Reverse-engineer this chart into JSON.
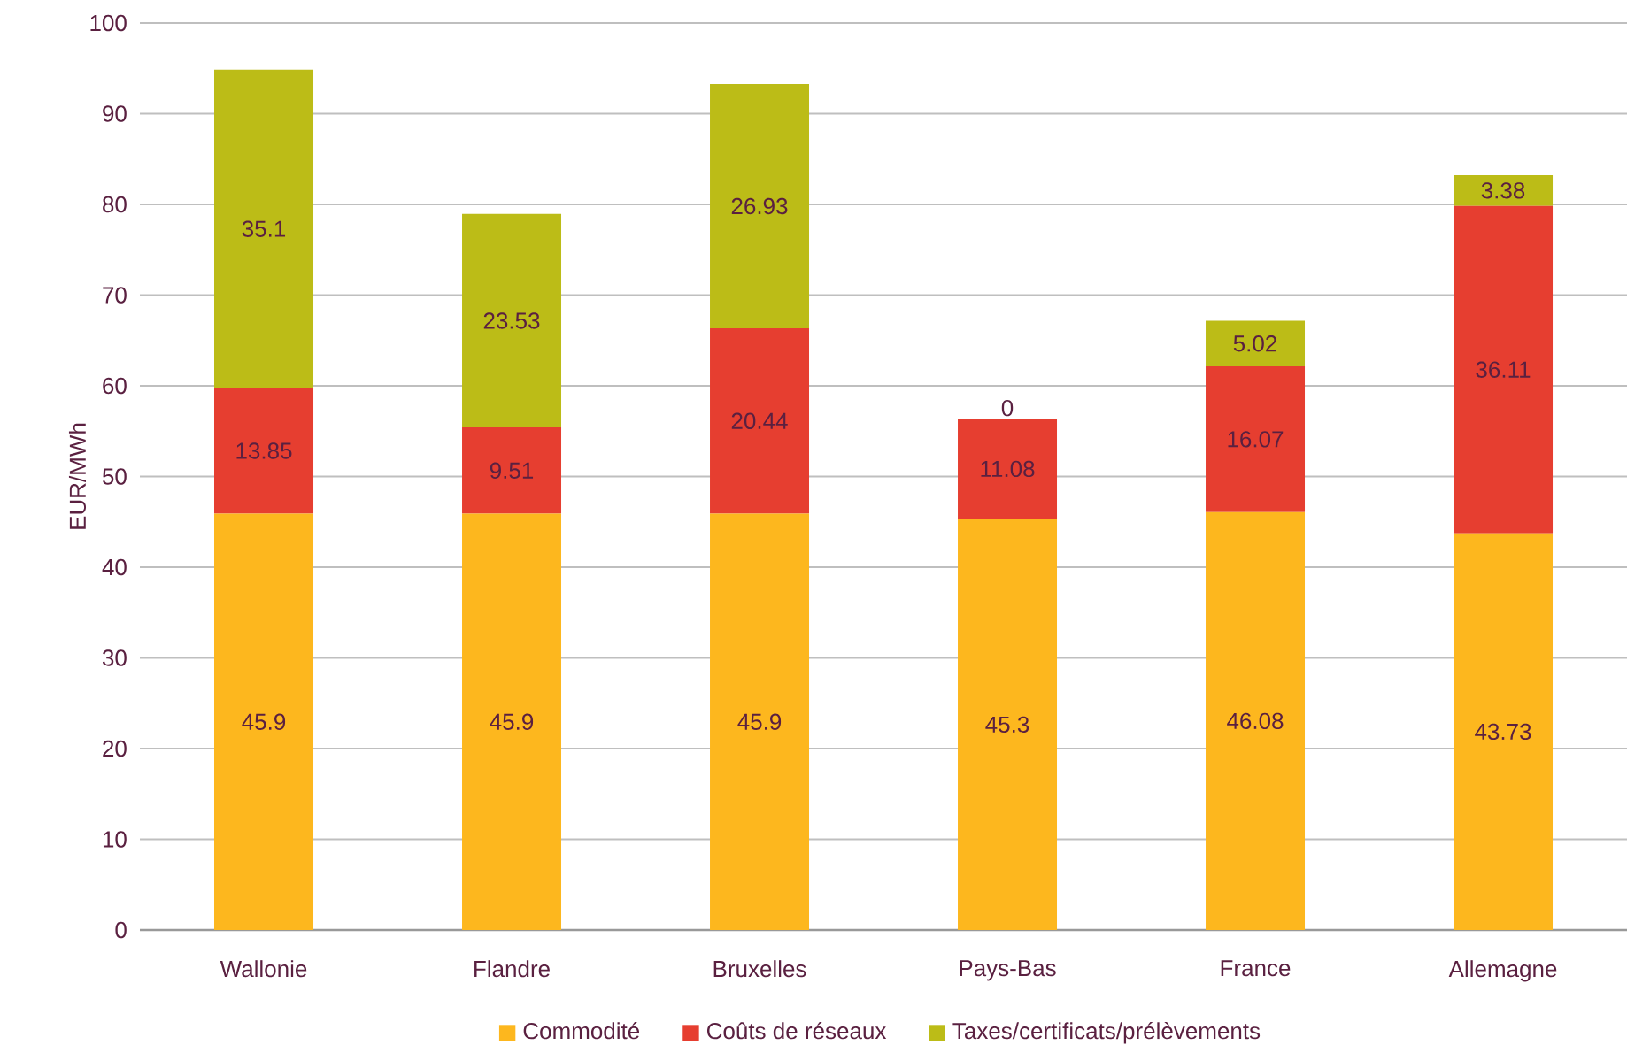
{
  "chart_data": {
    "type": "bar",
    "stacked": true,
    "ylabel": "EUR/MWh",
    "categories": [
      "Wallonie",
      "Flandre",
      "Bruxelles",
      "Pays-Bas",
      "France",
      "Allemagne"
    ],
    "series": [
      {
        "name": "Commodité",
        "color": "#fdb71e",
        "values": [
          45.9,
          45.9,
          45.9,
          45.3,
          46.08,
          43.73
        ]
      },
      {
        "name": "Coûts de réseaux",
        "color": "#e63e30",
        "values": [
          13.85,
          9.51,
          20.44,
          11.08,
          16.07,
          36.11
        ]
      },
      {
        "name": "Taxes/certificats/prélèvements",
        "color": "#bcbc17",
        "values": [
          35.1,
          23.53,
          26.93,
          0,
          5.02,
          3.38
        ]
      }
    ],
    "ylim": [
      0,
      100
    ],
    "yticks": [
      0,
      10,
      20,
      30,
      40,
      50,
      60,
      70,
      80,
      90,
      100
    ],
    "grid": "y",
    "legend": "bottom",
    "data_labels": true
  }
}
